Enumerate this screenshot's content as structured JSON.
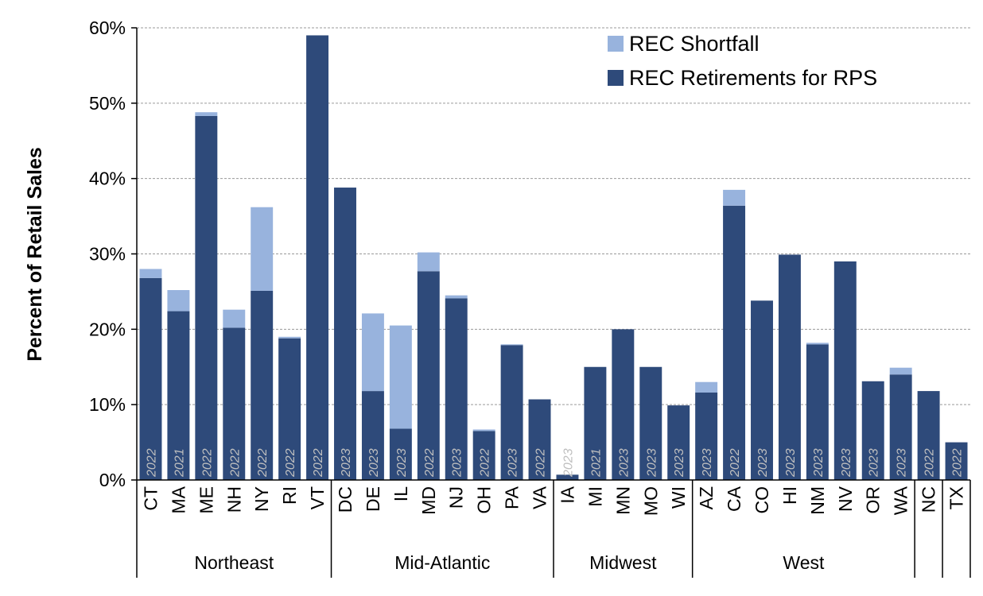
{
  "chart_data": {
    "type": "bar",
    "stacked": true,
    "ylabel": "Percent of Retail Sales",
    "ylim": [
      0,
      60
    ],
    "yticks": [
      "0%",
      "10%",
      "20%",
      "30%",
      "40%",
      "50%",
      "60%"
    ],
    "grid": true,
    "legend_position": "top-right",
    "categories": [
      "CT",
      "MA",
      "ME",
      "NH",
      "NY",
      "RI",
      "VT",
      "DC",
      "DE",
      "IL",
      "MD",
      "NJ",
      "OH",
      "PA",
      "VA",
      "IA",
      "MI",
      "MN",
      "MO",
      "WI",
      "AZ",
      "CA",
      "CO",
      "HI",
      "NM",
      "NV",
      "OR",
      "WA",
      "NC",
      "TX"
    ],
    "year_labels": [
      "2022",
      "2021",
      "2022",
      "2022",
      "2022",
      "2022",
      "2022",
      "2023",
      "2023",
      "2023",
      "2022",
      "2023",
      "2022",
      "2023",
      "2022",
      "2023",
      "2021",
      "2023",
      "2023",
      "2023",
      "2023",
      "2022",
      "2023",
      "2023",
      "2023",
      "2023",
      "2023",
      "2023",
      "2022",
      "2022"
    ],
    "series": [
      {
        "name": "REC Retirements for RPS",
        "color": "#2e4a7a",
        "values": [
          26.8,
          22.4,
          48.3,
          20.2,
          25.1,
          18.8,
          59.0,
          38.8,
          11.8,
          6.8,
          27.7,
          24.1,
          6.5,
          17.9,
          10.7,
          0.7,
          15.0,
          20.0,
          15.0,
          9.9,
          11.6,
          36.4,
          23.8,
          29.9,
          18.0,
          29.0,
          13.1,
          14.0,
          11.8,
          5.0
        ]
      },
      {
        "name": "REC Shortfall",
        "color": "#98b3dd",
        "values": [
          1.2,
          2.8,
          0.5,
          2.4,
          11.1,
          0.2,
          0.0,
          0.0,
          10.3,
          13.7,
          2.5,
          0.4,
          0.2,
          0.1,
          0.0,
          0.0,
          0.0,
          0.0,
          0.0,
          0.0,
          1.4,
          2.1,
          0.0,
          0.0,
          0.2,
          0.0,
          0.0,
          0.9,
          0.0,
          0.0
        ]
      }
    ],
    "region_groups": [
      {
        "label": "Northeast",
        "start": 0,
        "count": 7
      },
      {
        "label": "Mid-Atlantic",
        "start": 7,
        "count": 8
      },
      {
        "label": "Midwest",
        "start": 15,
        "count": 5
      },
      {
        "label": "West",
        "start": 20,
        "count": 8
      },
      {
        "label": "",
        "start": 28,
        "count": 1
      },
      {
        "label": "",
        "start": 29,
        "count": 1
      }
    ],
    "legend": [
      {
        "label": "REC Shortfall",
        "color": "#98b3dd"
      },
      {
        "label": "REC Retirements for RPS",
        "color": "#2e4a7a"
      }
    ]
  }
}
